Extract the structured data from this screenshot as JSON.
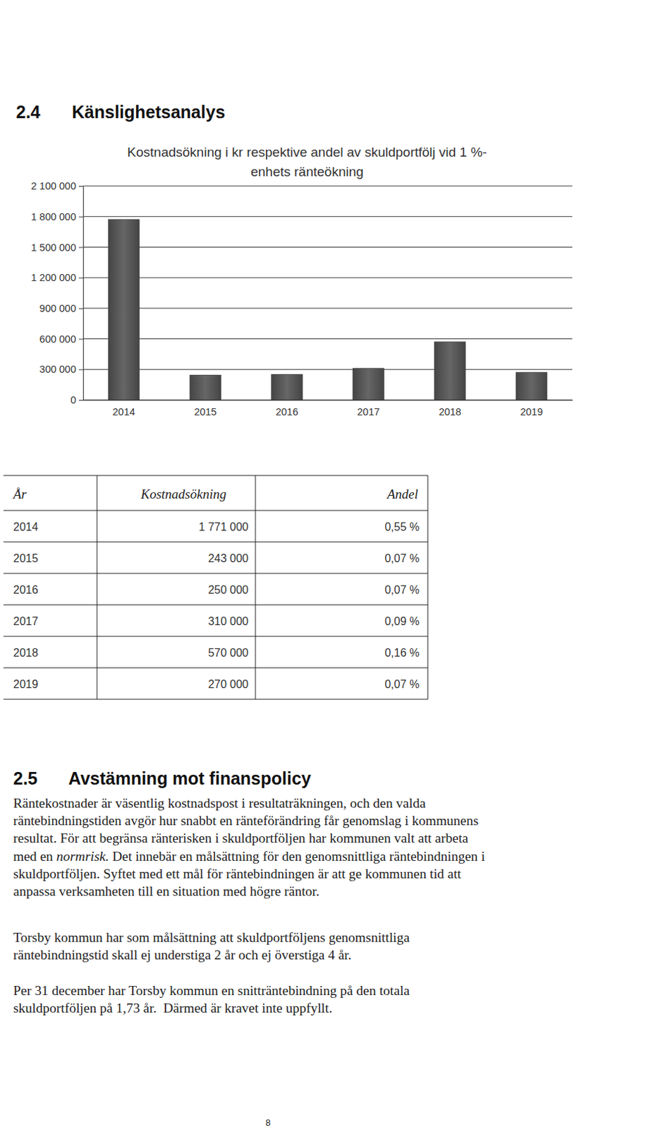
{
  "section_2_4": {
    "number": "2.4",
    "title": "Känslighetsanalys"
  },
  "chart_data": {
    "type": "bar",
    "title": "Kostnadsökning i kr respektive andel av skuldportfölj vid 1 %-\nenhets ränteökning",
    "categories": [
      "2014",
      "2015",
      "2016",
      "2017",
      "2018",
      "2019"
    ],
    "values": [
      1771000,
      243000,
      250000,
      310000,
      570000,
      270000
    ],
    "color": "#555555",
    "ylim": [
      0,
      2100000
    ],
    "yticks": [
      0,
      {
        "value": 300000,
        "label": "300 000"
      },
      {
        "value": 600000,
        "label": "600 000"
      },
      {
        "value": 900000,
        "label": "900 000"
      },
      {
        "value": 1200000,
        "label": "1 200 000"
      },
      {
        "value": 1500000,
        "label": "1 500 000"
      },
      {
        "value": 1800000,
        "label": "1 800 000"
      },
      {
        "value": 2100000,
        "label": "2 100 000"
      }
    ],
    "grid": true
  },
  "table": {
    "header": [
      "År",
      "Kostnadsökning",
      "Andel"
    ],
    "rows": [
      [
        "2014",
        "1 771 000",
        "0,55 %"
      ],
      [
        "2015",
        "243 000",
        "0,07 %"
      ],
      [
        "2016",
        "250 000",
        "0,07 %"
      ],
      [
        "2017",
        "310 000",
        "0,09 %"
      ],
      [
        "2018",
        "570 000",
        "0,16 %"
      ],
      [
        "2019",
        "270 000",
        "0,07 %"
      ]
    ]
  },
  "section_2_5": {
    "number": "2.5",
    "title": "Avstämning mot finanspolicy",
    "paragraphs": [
      [
        [
          "Räntekostnader är väsentlig kostnadspost i resultaträkningen, och den valda"
        ],
        [
          "räntebindningstiden avgör hur snabbt en ränteförändring får genomslag i kommunens"
        ],
        [
          "resultat. För att begränsa ränterisken i skuldportföljen har kommunen valt att arbeta"
        ],
        [
          "med en ",
          {
            "text": "normrisk.",
            "italic": true
          },
          " Det innebär en målsättning för den genomsnittliga räntebindningen i"
        ],
        [
          "skuldportföljen. Syftet med ett mål för räntebindningen är att ge kommunen tid att"
        ],
        [
          "anpassa verksamheten till en situation med högre räntor."
        ]
      ],
      [
        [
          "Torsby kommun har som målsättning att skuldportföljens genomsnittliga"
        ],
        [
          "räntebindningstid skall ej understiga 2 år och ej överstiga 4 år."
        ]
      ],
      [
        [
          "Per 31 december har Torsby kommun en snitträntebindning på den totala"
        ],
        [
          "skuldportföljen på 1,73 år.  Därmed är kravet inte uppfyllt."
        ]
      ]
    ]
  },
  "page_number": "8"
}
